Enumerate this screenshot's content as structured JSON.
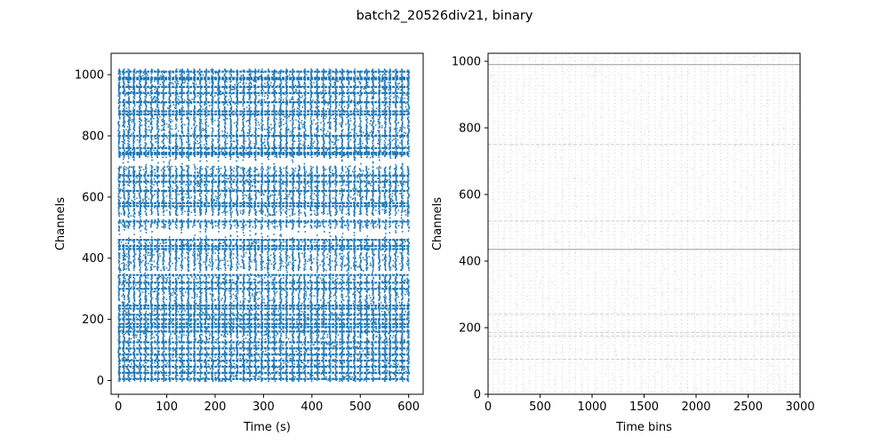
{
  "figure": {
    "title": "batch2_20526div21, binary"
  },
  "chart_data": [
    {
      "type": "scatter",
      "title": "",
      "xlabel": "Time (s)",
      "ylabel": "Channels",
      "xlim": [
        -15,
        630
      ],
      "ylim": [
        -45,
        1070
      ],
      "xticks": [
        0,
        100,
        200,
        300,
        400,
        500,
        600
      ],
      "yticks": [
        0,
        200,
        400,
        600,
        800,
        1000
      ],
      "color": "#1f77b4",
      "grid": false,
      "legend": "none",
      "channel_range": [
        0,
        1020
      ],
      "time_range": [
        0,
        600
      ],
      "burst_times": [
        0,
        10,
        20,
        31,
        43,
        55,
        67,
        80,
        92,
        105,
        118,
        130,
        143,
        156,
        168,
        180,
        193,
        206,
        219,
        231,
        244,
        257,
        270,
        282,
        295,
        308,
        321,
        334,
        346,
        359,
        372,
        384,
        397,
        410,
        423,
        436,
        448,
        461,
        474,
        487,
        499,
        512,
        525,
        538,
        550,
        560,
        572,
        585,
        598
      ],
      "dense_channels": [
        5,
        25,
        45,
        65,
        85,
        105,
        125,
        160,
        175,
        185,
        200,
        215,
        235,
        245,
        300,
        320,
        345,
        430,
        440,
        460,
        520,
        570,
        580,
        620,
        650,
        670,
        740,
        745,
        760,
        800,
        870,
        880,
        910,
        940,
        960,
        985,
        990,
        1010
      ],
      "gap_channels": [
        [
          345,
          360
        ],
        [
          465,
          500
        ],
        [
          530,
          540
        ],
        [
          705,
          730
        ]
      ]
    },
    {
      "type": "heatmap",
      "title": "",
      "xlabel": "Time bins",
      "ylabel": "Channels",
      "xlim": [
        0,
        3000
      ],
      "ylim": [
        0,
        1024
      ],
      "xticks": [
        0,
        500,
        1000,
        1500,
        2000,
        2500,
        3000
      ],
      "yticks": [
        0,
        200,
        400,
        600,
        800,
        1000
      ],
      "colormap": "binary",
      "grid": false,
      "legend": "none",
      "row_channels": [
        990,
        750,
        520,
        435,
        240,
        185,
        175,
        105
      ],
      "bin_columns": [
        0,
        50,
        100,
        155,
        215,
        275,
        335,
        400,
        460,
        525,
        590,
        650,
        715,
        780,
        840,
        900,
        965,
        1030,
        1095,
        1155,
        1220,
        1285,
        1350,
        1410,
        1475,
        1540,
        1605,
        1670,
        1730,
        1795,
        1860,
        1920,
        1985,
        2050,
        2115,
        2180,
        2240,
        2305,
        2370,
        2435,
        2495,
        2560,
        2625,
        2690,
        2750,
        2800,
        2860,
        2925,
        2990
      ]
    }
  ]
}
